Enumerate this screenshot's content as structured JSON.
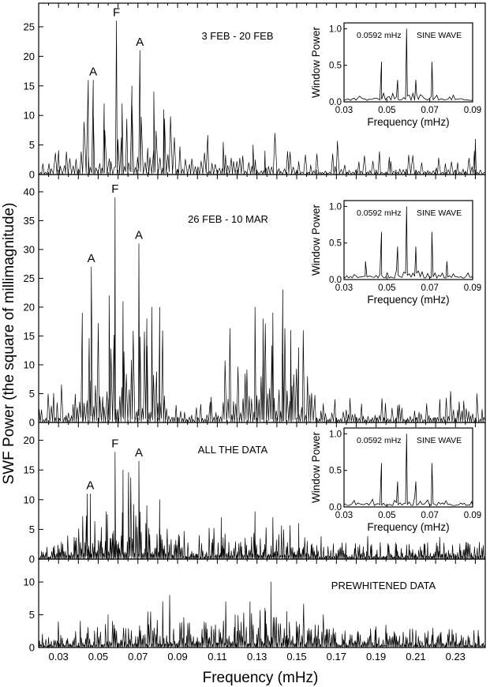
{
  "figure": {
    "xlabel": "Frequency (mHz)",
    "ylabel": "SWF Power (the square of millimagnitude)",
    "xticks": [
      "0.03",
      "0.05",
      "0.07",
      "0.09",
      "0.11",
      "0.13",
      "0.15",
      "0.17",
      "0.19",
      "0.21",
      "0.23"
    ]
  },
  "chart_data": [
    {
      "type": "line",
      "panel": "3 FEB - 20 FEB",
      "label": "3 FEB - 20 FEB",
      "xlim": [
        0.02,
        0.245
      ],
      "ylim": [
        0,
        29
      ],
      "yticks": [
        "0",
        "5",
        "10",
        "15",
        "20",
        "25"
      ],
      "peak_labels": [
        {
          "text": "A",
          "x": 0.0475,
          "y": 16
        },
        {
          "text": "F",
          "x": 0.0592,
          "y": 26
        },
        {
          "text": "A",
          "x": 0.071,
          "y": 21
        }
      ],
      "series": [
        {
          "features": [
            [
              0.0475,
              16
            ],
            [
              0.0592,
              26
            ],
            [
              0.071,
              21
            ],
            [
              0.045,
              16
            ],
            [
              0.053,
              12
            ],
            [
              0.062,
              12
            ],
            [
              0.067,
              15
            ],
            [
              0.078,
              14
            ],
            [
              0.083,
              11
            ],
            [
              0.113,
              5.5
            ],
            [
              0.128,
              5
            ],
            [
              0.134,
              4
            ],
            [
              0.24,
              6
            ]
          ],
          "envelopes": [
            [
              0.02,
              1.5
            ],
            [
              0.035,
              4
            ],
            [
              0.045,
              7
            ],
            [
              0.065,
              9
            ],
            [
              0.075,
              7
            ],
            [
              0.09,
              4
            ],
            [
              0.11,
              3
            ],
            [
              0.135,
              3.5
            ],
            [
              0.16,
              2.5
            ],
            [
              0.245,
              2.5
            ]
          ]
        }
      ],
      "inset": {
        "label": "0.0592 mHz",
        "label2": "SINE WAVE",
        "xlabel": "Frequency (mHz)",
        "ylabel": "Window Power",
        "xticks": [
          "0.03",
          "0.05",
          "0.07",
          "0.09"
        ],
        "yticks": [
          "0.0",
          "0.5",
          "1.0"
        ],
        "xlim": [
          0.03,
          0.09
        ],
        "ylim": [
          0,
          1.08
        ],
        "peaks": [
          [
            0.0592,
            1.0
          ],
          [
            0.0475,
            0.55
          ],
          [
            0.071,
            0.55
          ],
          [
            0.055,
            0.3
          ],
          [
            0.0635,
            0.3
          ]
        ]
      }
    },
    {
      "type": "line",
      "panel": "26 FEB - 10 MAR",
      "label": "26 FEB - 10 MAR",
      "xlim": [
        0.02,
        0.245
      ],
      "ylim": [
        0,
        43
      ],
      "yticks": [
        "0",
        "5",
        "10",
        "15",
        "20",
        "25",
        "30",
        "35",
        "40"
      ],
      "peak_labels": [
        {
          "text": "A",
          "x": 0.0465,
          "y": 27
        },
        {
          "text": "F",
          "x": 0.0585,
          "y": 39
        },
        {
          "text": "A",
          "x": 0.0705,
          "y": 31
        }
      ],
      "series": [
        {
          "features": [
            [
              0.0465,
              27
            ],
            [
              0.0585,
              39
            ],
            [
              0.0705,
              31
            ],
            [
              0.0555,
              22
            ],
            [
              0.0625,
              21
            ],
            [
              0.077,
              20
            ],
            [
              0.081,
              20
            ],
            [
              0.042,
              19
            ],
            [
              0.0745,
              18
            ],
            [
              0.143,
              23
            ],
            [
              0.138,
              19
            ],
            [
              0.129,
              20
            ],
            [
              0.133,
              18
            ],
            [
              0.147,
              16
            ],
            [
              0.151,
              13
            ]
          ],
          "envelopes": [
            [
              0.02,
              3
            ],
            [
              0.03,
              4
            ],
            [
              0.04,
              9
            ],
            [
              0.05,
              12
            ],
            [
              0.065,
              13
            ],
            [
              0.08,
              10
            ],
            [
              0.09,
              5
            ],
            [
              0.1,
              2.5
            ],
            [
              0.11,
              6
            ],
            [
              0.125,
              12
            ],
            [
              0.14,
              13
            ],
            [
              0.15,
              10
            ],
            [
              0.158,
              4
            ],
            [
              0.17,
              3
            ],
            [
              0.245,
              3.5
            ]
          ]
        }
      ],
      "inset": {
        "label": "0.0592 mHz",
        "label2": "SINE WAVE",
        "xlabel": "Frequency (mHz)",
        "ylabel": "Window Power",
        "xticks": [
          "0.03",
          "0.05",
          "0.07",
          "0.09"
        ],
        "yticks": [
          "0.0",
          "0.5",
          "1.0"
        ],
        "xlim": [
          0.03,
          0.09
        ],
        "ylim": [
          0,
          1.08
        ],
        "peaks": [
          [
            0.0592,
            1.0
          ],
          [
            0.0475,
            0.65
          ],
          [
            0.071,
            0.65
          ],
          [
            0.055,
            0.45
          ],
          [
            0.0635,
            0.45
          ],
          [
            0.04,
            0.25
          ],
          [
            0.078,
            0.25
          ]
        ]
      }
    },
    {
      "type": "line",
      "panel": "ALL THE DATA",
      "label": "ALL THE DATA",
      "xlim": [
        0.02,
        0.245
      ],
      "ylim": [
        0,
        23
      ],
      "yticks": [
        "0",
        "5",
        "10",
        "15",
        "20"
      ],
      "peak_labels": [
        {
          "text": "A",
          "x": 0.046,
          "y": 11
        },
        {
          "text": "F",
          "x": 0.0585,
          "y": 18
        },
        {
          "text": "A",
          "x": 0.0705,
          "y": 16.5
        }
      ],
      "series": [
        {
          "features": [
            [
              0.046,
              11
            ],
            [
              0.0585,
              18
            ],
            [
              0.0705,
              16.5
            ],
            [
              0.0445,
              11
            ],
            [
              0.0625,
              15
            ],
            [
              0.081,
              10
            ],
            [
              0.0745,
              9
            ],
            [
              0.054,
              8
            ],
            [
              0.112,
              7
            ],
            [
              0.129,
              8
            ],
            [
              0.138,
              7
            ],
            [
              0.151,
              6
            ]
          ],
          "envelopes": [
            [
              0.02,
              1
            ],
            [
              0.03,
              2
            ],
            [
              0.04,
              5
            ],
            [
              0.06,
              7
            ],
            [
              0.075,
              6
            ],
            [
              0.09,
              3
            ],
            [
              0.1,
              2
            ],
            [
              0.125,
              4
            ],
            [
              0.145,
              4
            ],
            [
              0.16,
              2
            ],
            [
              0.245,
              2
            ]
          ]
        }
      ],
      "inset": {
        "label": "0.0592 mHz",
        "label2": "SINE WAVE",
        "xlabel": "Frequency (mHz)",
        "ylabel": "Window Power",
        "xticks": [
          "0.03",
          "0.05",
          "0.07",
          "0.09"
        ],
        "yticks": [
          "0.0",
          "0.5",
          "1.0"
        ],
        "xlim": [
          0.03,
          0.09
        ],
        "ylim": [
          0,
          1.08
        ],
        "peaks": [
          [
            0.0592,
            1.0
          ],
          [
            0.0475,
            0.6
          ],
          [
            0.071,
            0.6
          ],
          [
            0.055,
            0.35
          ],
          [
            0.0635,
            0.35
          ]
        ]
      }
    },
    {
      "type": "line",
      "panel": "PREWHITENED DATA",
      "label": "PREWHITENED  DATA",
      "xlim": [
        0.02,
        0.245
      ],
      "ylim": [
        0,
        13.5
      ],
      "yticks": [
        "0",
        "5",
        "10"
      ],
      "peak_labels": [],
      "series": [
        {
          "features": [
            [
              0.137,
              10
            ],
            [
              0.086,
              8
            ],
            [
              0.1265,
              7
            ],
            [
              0.0825,
              7
            ],
            [
              0.145,
              5.5
            ],
            [
              0.055,
              5
            ],
            [
              0.119,
              5
            ],
            [
              0.134,
              6
            ]
          ],
          "envelopes": [
            [
              0.02,
              1.5
            ],
            [
              0.04,
              2
            ],
            [
              0.06,
              3
            ],
            [
              0.09,
              3.5
            ],
            [
              0.11,
              3
            ],
            [
              0.13,
              4
            ],
            [
              0.15,
              3.5
            ],
            [
              0.17,
              2
            ],
            [
              0.245,
              2
            ]
          ]
        }
      ]
    }
  ]
}
